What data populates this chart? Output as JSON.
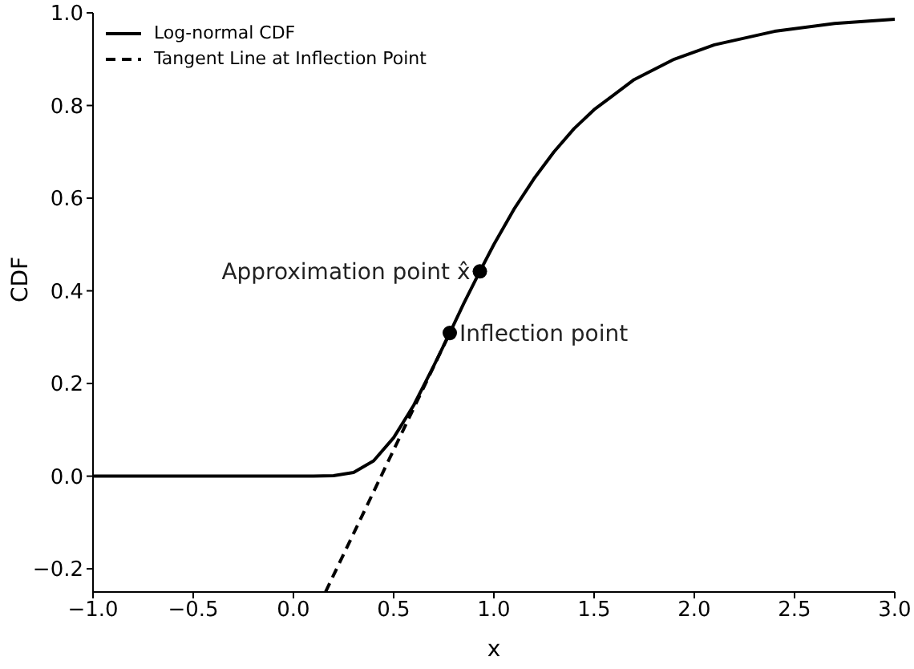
{
  "chart_data": {
    "type": "line",
    "xlabel": "x",
    "ylabel": "CDF",
    "xlim": [
      -1,
      3
    ],
    "ylim": [
      -0.25,
      1.0
    ],
    "xticks": [
      {
        "value": -1,
        "label": "−1.0"
      },
      {
        "value": -0.5,
        "label": "−0.5"
      },
      {
        "value": 0,
        "label": "0.0"
      },
      {
        "value": 0.5,
        "label": "0.5"
      },
      {
        "value": 1,
        "label": "1.0"
      },
      {
        "value": 1.5,
        "label": "1.5"
      },
      {
        "value": 2,
        "label": "2.0"
      },
      {
        "value": 2.5,
        "label": "2.5"
      },
      {
        "value": 3,
        "label": "3.0"
      }
    ],
    "yticks": [
      {
        "value": -0.2,
        "label": "−0.2"
      },
      {
        "value": 0,
        "label": "0.0"
      },
      {
        "value": 0.2,
        "label": "0.2"
      },
      {
        "value": 0.4,
        "label": "0.4"
      },
      {
        "value": 0.6,
        "label": "0.6"
      },
      {
        "value": 0.8,
        "label": "0.8"
      },
      {
        "value": 1.0,
        "label": "1.0"
      }
    ],
    "grid": false,
    "legend": "top left",
    "marker": "none",
    "series": [
      {
        "name": "Log-normal CDF",
        "color": "#000000",
        "line_style": "solid",
        "x": [
          -1,
          0,
          0.1,
          0.2,
          0.3,
          0.4,
          0.5,
          0.6,
          0.7,
          0.78,
          0.85,
          0.93,
          1.0,
          1.1,
          1.2,
          1.3,
          1.4,
          1.5,
          1.7,
          1.9,
          2.1,
          2.4,
          2.7,
          3.0
        ],
        "values": [
          0,
          0,
          0,
          0.001,
          0.008,
          0.033,
          0.083,
          0.153,
          0.238,
          0.309,
          0.373,
          0.442,
          0.5,
          0.576,
          0.642,
          0.7,
          0.75,
          0.791,
          0.856,
          0.9,
          0.931,
          0.96,
          0.977,
          0.986
        ]
      },
      {
        "name": "Tangent Line at Inflection Point",
        "color": "#000000",
        "line_style": "dashed",
        "x": [
          0.16,
          0.78
        ],
        "values": [
          -0.25,
          0.309
        ]
      },
      {
        "type": "scatter",
        "color": "#000000",
        "marker": "circle",
        "x": [
          0.78,
          0.93
        ],
        "values": [
          0.309,
          0.442
        ]
      }
    ],
    "annotations": [
      {
        "text": "Inflection point",
        "x": 0.78,
        "y": 0.309
      },
      {
        "text": "Approximation point x̂",
        "x": 0.93,
        "y": 0.442
      }
    ]
  }
}
